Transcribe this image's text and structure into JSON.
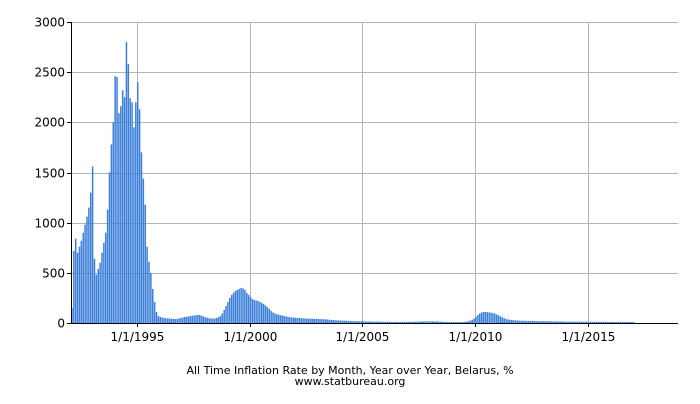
{
  "chart_data": {
    "type": "bar",
    "title": "All Time Inflation Rate by Month, Year over Year, Belarus, %",
    "source": "www.statbureau.org",
    "xlabel": "",
    "ylabel": "",
    "ylim": [
      0,
      3000
    ],
    "y_ticks": [
      0,
      500,
      1000,
      1500,
      2000,
      2500,
      3000
    ],
    "x_range": [
      "1992-02",
      "2018-12"
    ],
    "x_ticks": [
      {
        "date": "1995-01",
        "label": "1/1/1995"
      },
      {
        "date": "2000-01",
        "label": "1/1/2000"
      },
      {
        "date": "2005-01",
        "label": "1/1/2005"
      },
      {
        "date": "2010-01",
        "label": "1/1/2010"
      },
      {
        "date": "2015-01",
        "label": "1/1/2015"
      }
    ],
    "grid": true,
    "legend": "none",
    "bar_color": "#3c7fd9",
    "series": [
      {
        "start": "1992-02",
        "frequency": "monthly",
        "values": [
          150,
          720,
          840,
          700,
          760,
          820,
          900,
          980,
          1060,
          1150,
          1300,
          1560,
          640,
          480,
          540,
          600,
          700,
          800,
          900,
          1130,
          1500,
          1780,
          2000,
          2460,
          2450,
          2090,
          2160,
          2320,
          2250,
          2800,
          2580,
          2240,
          2200,
          1950,
          2200,
          2400,
          2130,
          1700,
          1440,
          1180,
          760,
          610,
          500,
          340,
          210,
          110,
          70,
          60,
          55,
          50,
          48,
          45,
          45,
          42,
          40,
          40,
          42,
          45,
          50,
          55,
          60,
          62,
          65,
          68,
          72,
          75,
          78,
          80,
          78,
          72,
          65,
          58,
          52,
          48,
          45,
          44,
          45,
          50,
          58,
          70,
          95,
          130,
          170,
          210,
          250,
          280,
          300,
          320,
          330,
          340,
          350,
          345,
          330,
          300,
          280,
          260,
          240,
          230,
          225,
          220,
          210,
          200,
          190,
          175,
          160,
          140,
          120,
          105,
          95,
          88,
          82,
          78,
          74,
          70,
          66,
          62,
          58,
          56,
          54,
          52,
          50,
          50,
          48,
          46,
          45,
          44,
          44,
          43,
          42,
          42,
          41,
          40,
          39,
          38,
          37,
          36,
          35,
          33,
          31,
          30,
          28,
          27,
          26,
          25,
          24,
          23,
          22,
          21,
          20,
          20,
          19,
          18,
          18,
          17,
          17,
          16,
          16,
          15,
          15,
          15,
          14,
          14,
          14,
          13,
          13,
          13,
          12,
          12,
          12,
          12,
          11,
          11,
          11,
          11,
          11,
          11,
          11,
          11,
          12,
          12,
          12,
          13,
          13,
          14,
          14,
          15,
          15,
          16,
          16,
          16,
          17,
          17,
          17,
          16,
          16,
          15,
          14,
          13,
          12,
          11,
          10,
          10,
          9,
          9,
          9,
          9,
          10,
          10,
          11,
          12,
          14,
          18,
          24,
          32,
          45,
          60,
          80,
          95,
          105,
          110,
          110,
          108,
          106,
          104,
          100,
          94,
          86,
          76,
          66,
          56,
          48,
          40,
          35,
          32,
          30,
          28,
          26,
          25,
          24,
          23,
          22,
          22,
          21,
          21,
          20,
          20,
          20,
          19,
          19,
          19,
          18,
          18,
          18,
          17,
          17,
          17,
          16,
          16,
          16,
          15,
          15,
          15,
          14,
          14,
          14,
          14,
          13,
          13,
          13,
          13,
          13,
          13,
          13,
          13,
          13,
          13,
          12,
          12,
          12,
          12,
          12,
          12,
          12,
          12,
          11,
          11,
          11,
          11,
          11,
          11,
          11,
          11,
          11,
          10,
          10,
          10,
          10,
          10,
          10,
          10
        ]
      }
    ]
  }
}
